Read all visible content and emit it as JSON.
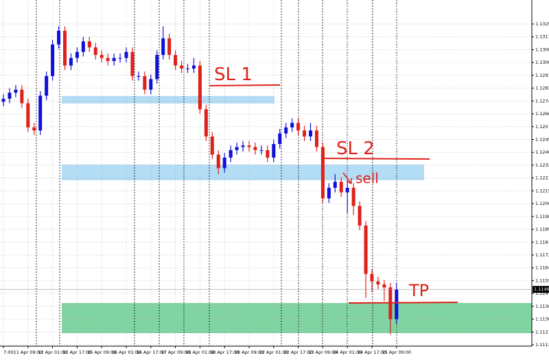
{
  "chart_data": {
    "type": "candlestick",
    "categories": [
      "7:00",
      null,
      null,
      null,
      "11 Apr 09:00",
      null,
      null,
      null,
      "12 Apr 01:00",
      null,
      null,
      null,
      "12 Apr 17:00",
      null,
      null,
      null,
      "15 Apr 09:00",
      null,
      null,
      null,
      "16 Apr 01:00",
      null,
      null,
      null,
      "16 Apr 17:00",
      null,
      null,
      null,
      "17 Apr 09:00",
      null,
      null,
      null,
      "18 Apr 01:00",
      null,
      null,
      null,
      "18 Apr 17:00",
      null,
      null,
      null,
      "19 Apr 09:00",
      null,
      null,
      null,
      "22 Apr 01:00",
      null,
      null,
      null,
      "22 Apr 17:00",
      null,
      null,
      null,
      "23 Apr 09:00",
      null,
      null,
      null,
      "24 Apr 01:00",
      null,
      null,
      null,
      "24 Apr 17:00",
      null,
      null,
      null,
      "25 Apr 09:00"
    ],
    "open": [
      1.1274,
      1.1276,
      1.128,
      1.1282,
      1.1273,
      1.1257,
      1.1255,
      1.1278,
      1.1291,
      1.1312,
      1.1321,
      1.1298,
      1.1303,
      1.1307,
      1.1314,
      1.131,
      1.1305,
      1.1303,
      1.1301,
      1.1303,
      1.1303,
      1.1307,
      1.1291,
      1.1291,
      1.1282,
      1.1289,
      1.1305,
      1.1316,
      1.1305,
      1.1298,
      1.1296,
      1.1296,
      1.1298,
      1.1269,
      1.1251,
      1.1239,
      1.123,
      1.1237,
      1.1242,
      1.1244,
      1.1245,
      1.1244,
      1.1242,
      1.1242,
      1.1237,
      1.1246,
      1.1253,
      1.1257,
      1.126,
      1.1255,
      1.1251,
      1.1255,
      1.1244,
      1.121,
      1.1217,
      1.1221,
      1.1214,
      1.1217,
      1.1205,
      1.1192,
      1.116,
      1.1155,
      1.1153,
      1.1151,
      1.113
    ],
    "high": [
      1.1279,
      1.1283,
      1.1285,
      1.1285,
      1.1276,
      1.126,
      1.1281,
      1.1294,
      1.1315,
      1.1324,
      1.1324,
      1.1306,
      1.131,
      1.1317,
      1.1317,
      1.1313,
      1.1308,
      1.1306,
      1.1306,
      1.1306,
      1.131,
      1.131,
      1.1294,
      1.1294,
      1.1292,
      1.1308,
      1.1324,
      1.1319,
      1.1308,
      1.1301,
      1.1299,
      1.1303,
      1.1301,
      1.1272,
      1.1254,
      1.1242,
      1.124,
      1.1245,
      1.1247,
      1.1248,
      1.1248,
      1.1247,
      1.1245,
      1.1245,
      1.1249,
      1.1256,
      1.126,
      1.1263,
      1.1263,
      1.1258,
      1.126,
      1.1258,
      1.1247,
      1.122,
      1.1226,
      1.1224,
      1.1222,
      1.122,
      1.1208,
      1.1195,
      1.1163,
      1.1158,
      1.1156,
      1.1154,
      1.1154
    ],
    "low": [
      1.1271,
      1.1273,
      1.1277,
      1.127,
      1.1254,
      1.1252,
      1.1252,
      1.1275,
      1.1288,
      1.1309,
      1.1295,
      1.1295,
      1.13,
      1.1304,
      1.1307,
      1.1302,
      1.13,
      1.1298,
      1.1298,
      1.13,
      1.13,
      1.1288,
      1.1288,
      1.1279,
      1.1279,
      1.1286,
      1.1302,
      1.1302,
      1.1295,
      1.1293,
      1.1293,
      1.1293,
      1.1266,
      1.1248,
      1.1236,
      1.1226,
      1.1227,
      1.1234,
      1.1239,
      1.1241,
      1.1241,
      1.1239,
      1.1239,
      1.1234,
      1.1234,
      1.1243,
      1.125,
      1.1254,
      1.1252,
      1.1248,
      1.1248,
      1.1241,
      1.1207,
      1.1207,
      1.1214,
      1.1211,
      1.12,
      1.1199,
      1.1189,
      1.1144,
      1.1148,
      1.115,
      1.1142,
      1.112,
      1.1127
    ],
    "close": [
      1.1276,
      1.128,
      1.1282,
      1.1273,
      1.1257,
      1.1255,
      1.1278,
      1.1291,
      1.1312,
      1.1321,
      1.1298,
      1.1303,
      1.1307,
      1.1314,
      1.131,
      1.1305,
      1.1303,
      1.1301,
      1.1303,
      1.1303,
      1.1307,
      1.1291,
      1.1291,
      1.1282,
      1.1289,
      1.1305,
      1.1316,
      1.1305,
      1.1298,
      1.1296,
      1.1296,
      1.1298,
      1.1269,
      1.1251,
      1.1239,
      1.123,
      1.1237,
      1.1242,
      1.1244,
      1.1245,
      1.1244,
      1.1242,
      1.1242,
      1.1237,
      1.1246,
      1.1253,
      1.1257,
      1.126,
      1.1255,
      1.1251,
      1.1255,
      1.1244,
      1.121,
      1.1217,
      1.1221,
      1.1214,
      1.1217,
      1.1205,
      1.1192,
      1.116,
      1.1155,
      1.1153,
      1.1151,
      1.113,
      1.11497
    ],
    "up_color": "#1010d8",
    "down_color": "#e0201a",
    "ylim": [
      1.11121,
      1.13414
    ],
    "yticks": [
      1.13255,
      1.1317,
      1.13085,
      {
        "value": 1.13,
        "label": "1.13000"
      },
      1.12915,
      {
        "value": 1.1283,
        "label": "1.12830"
      },
      1.12745,
      {
        "value": 1.1266,
        "label": "1.12660"
      },
      1.12575,
      {
        "value": 1.1249,
        "label": "1.12490"
      },
      1.12405,
      {
        "value": 1.1232,
        "label": "1.12320"
      },
      1.12235,
      {
        "value": 1.1215,
        "label": "1.12150"
      },
      1.12065,
      {
        "value": 1.1198,
        "label": "1.11980"
      },
      1.11895,
      {
        "value": 1.1181,
        "label": "1.11810"
      },
      1.11725,
      {
        "value": 1.1164,
        "label": "1.11640"
      },
      1.11555,
      {
        "value": 1.1147,
        "label": "1.11470"
      },
      1.11385,
      {
        "value": 1.113,
        "label": "1.11300"
      },
      1.11215,
      {
        "value": 1.1113,
        "label": "1.11130"
      }
    ],
    "current_price": 1.11497,
    "grid": true,
    "annotations": [
      "SL 1",
      "SL 2",
      "sell",
      "TP"
    ]
  }
}
